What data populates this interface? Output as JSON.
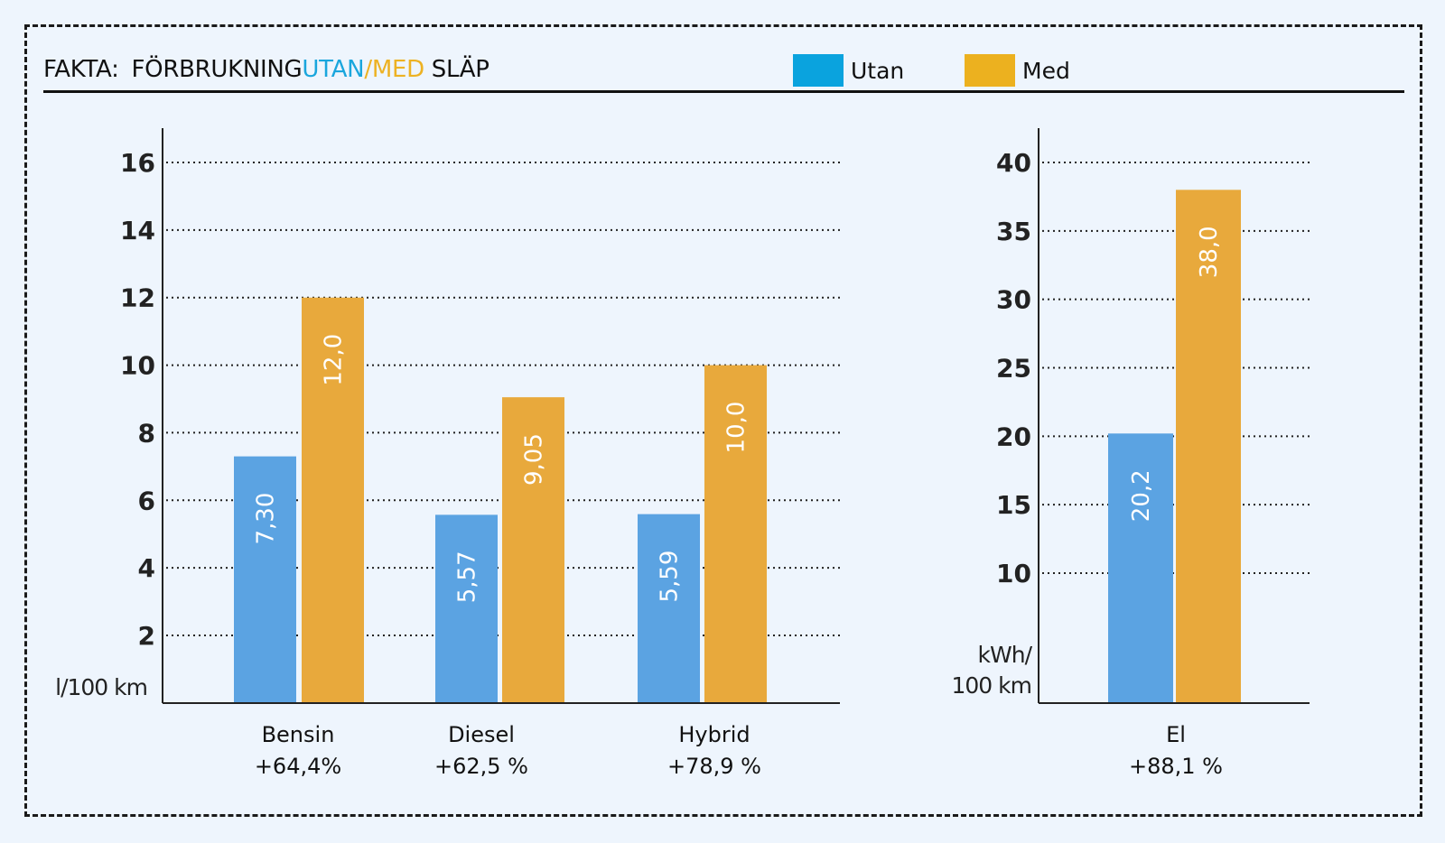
{
  "header": {
    "title_prefix": "FAKTA:",
    "title_main": "FÖRBRUKNING",
    "title_utan": "UTAN",
    "title_slash": "/",
    "title_med": "MED",
    "title_suffix": "SLÄP"
  },
  "legend": [
    {
      "label": "Utan",
      "color": "#0aa3de"
    },
    {
      "label": "Med",
      "color": "#ecb11f"
    }
  ],
  "colors": {
    "utan_bar": "#5ba3e2",
    "med_bar": "#e8a93c",
    "utan_text": "#1aa6dd",
    "med_text": "#edb223"
  },
  "chart_data": [
    {
      "type": "bar",
      "title": "",
      "ylabel": "l/100 km",
      "ylim": [
        0,
        17
      ],
      "yticks": [
        2,
        4,
        6,
        8,
        10,
        12,
        14,
        16
      ],
      "grid": true,
      "categories": [
        "Bensin",
        "Diesel",
        "Hybrid"
      ],
      "category_notes": [
        "+64,4%",
        "+62,5 %",
        "+78,9 %"
      ],
      "series": [
        {
          "name": "Utan",
          "values": [
            7.3,
            5.57,
            5.59
          ],
          "labels": [
            "7,30",
            "5,57",
            "5,59"
          ]
        },
        {
          "name": "Med",
          "values": [
            12.0,
            9.05,
            10.0
          ],
          "labels": [
            "12,0",
            "9,05",
            "10,0"
          ]
        }
      ]
    },
    {
      "type": "bar",
      "title": "",
      "ylabel": "kWh/ 100 km",
      "ylim": [
        0,
        42
      ],
      "yticks": [
        10,
        15,
        20,
        25,
        30,
        35,
        40
      ],
      "grid": true,
      "categories": [
        "El"
      ],
      "category_notes": [
        "+88,1 %"
      ],
      "series": [
        {
          "name": "Utan",
          "values": [
            20.2
          ],
          "labels": [
            "20,2"
          ]
        },
        {
          "name": "Med",
          "values": [
            38.0
          ],
          "labels": [
            "38,0"
          ]
        }
      ]
    }
  ]
}
